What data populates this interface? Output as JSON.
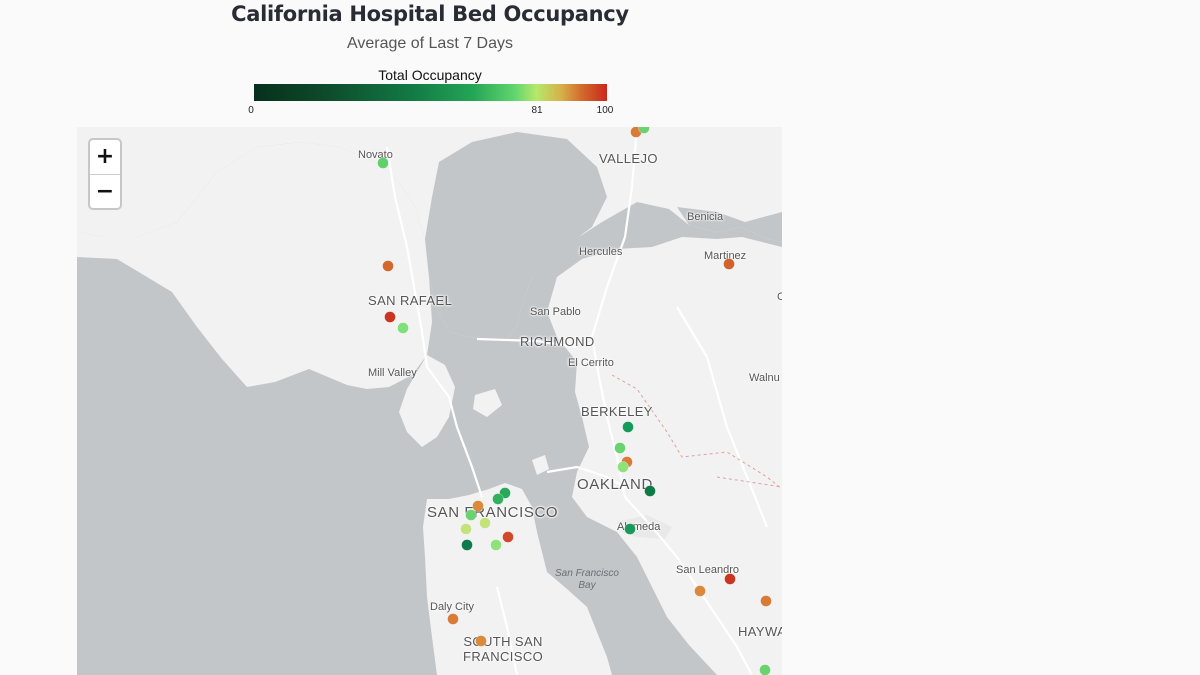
{
  "header": {
    "title": "California Hospital Bed Occupancy",
    "subtitle": "Average of Last 7 Days"
  },
  "legend": {
    "title": "Total Occupancy",
    "ticks": [
      "0",
      "81",
      "100"
    ]
  },
  "map": {
    "zoom_in_label": "+",
    "zoom_out_label": "−",
    "labels": {
      "novato": "Novato",
      "vallejo": "VALLEJO",
      "benicia": "Benicia",
      "hercules": "Hercules",
      "martinez": "Martinez",
      "san_rafael": "SAN RAFAEL",
      "san_pablo": "San Pablo",
      "richmond": "RICHMOND",
      "el_cerrito": "El Cerrito",
      "mill_valley": "Mill Valley",
      "walnut": "Walnu",
      "berkeley": "BERKELEY",
      "oakland": "OAKLAND",
      "san_francisco": "SAN FRANCISCO",
      "alameda": "Alameda",
      "sf_bay_line1": "San Francisco",
      "sf_bay_line2": "Bay",
      "san_leandro": "San Leandro",
      "daly_city": "Daly City",
      "south_sf_line1": "SOUTH SAN",
      "south_sf_line2": "FRANCISCO",
      "hayward": "HAYWA",
      "edge_c": "C"
    }
  },
  "colors": {
    "scale_low": "#07301c",
    "scale_mid": "#24a556",
    "scale_81": "#b6e86a",
    "scale_high": "#c9281b",
    "water": "#c3c6c8",
    "land": "#f2f2f2"
  }
}
